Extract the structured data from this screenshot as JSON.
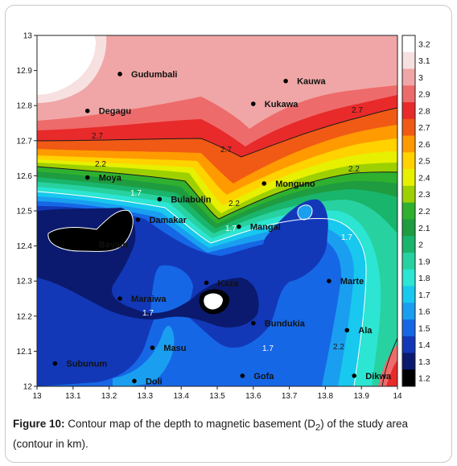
{
  "figure": {
    "x_ticks": [
      "13",
      "13.1",
      "13.2",
      "13.3",
      "13.4",
      "13.5",
      "13.6",
      "13.7",
      "13.8",
      "13.9",
      "14"
    ],
    "y_ticks": [
      "13",
      "12.9",
      "12.8",
      "12.7",
      "12.6",
      "12.5",
      "12.4",
      "12.3",
      "12.2",
      "12.1",
      "12"
    ],
    "colorbar": {
      "labels": [
        "3.2",
        "3.1",
        "3",
        "2.9",
        "2.8",
        "2.7",
        "2.6",
        "2.5",
        "2.4",
        "2.3",
        "2.2",
        "2.1",
        "2",
        "1.9",
        "1.8",
        "1.7",
        "1.6",
        "1.5",
        "1.4",
        "1.3",
        "1.2"
      ],
      "colors": [
        "#ffffff",
        "#f7e0e0",
        "#f0a6a6",
        "#ee6b6b",
        "#e82a2a",
        "#f05a14",
        "#ff9a00",
        "#ffd200",
        "#e6f000",
        "#9ed000",
        "#2fb12f",
        "#1e9c3f",
        "#19b56c",
        "#28d1a0",
        "#2ce5d2",
        "#18c8ee",
        "#1a9ff0",
        "#1667e6",
        "#1238b8",
        "#0b1a6e",
        "#000000"
      ]
    },
    "contour_labels": [
      "2.7",
      "2.7",
      "2.7",
      "2.2",
      "2.2",
      "2.2",
      "2.2",
      "1.7",
      "1.7",
      "1.7",
      "1.7",
      "1.7"
    ],
    "towns": [
      {
        "name": "Gudumbali",
        "lon": 13.23,
        "lat": 12.89
      },
      {
        "name": "Kauwa",
        "lon": 13.69,
        "lat": 12.87
      },
      {
        "name": "Degagu",
        "lon": 13.14,
        "lat": 12.785
      },
      {
        "name": "Kukawa",
        "lon": 13.6,
        "lat": 12.805
      },
      {
        "name": "Moya",
        "lon": 13.14,
        "lat": 12.595
      },
      {
        "name": "Monguno",
        "lon": 13.63,
        "lat": 12.578
      },
      {
        "name": "Bulabulin",
        "lon": 13.34,
        "lat": 12.533
      },
      {
        "name": "Damakar",
        "lon": 13.28,
        "lat": 12.475
      },
      {
        "name": "Mangal",
        "lon": 13.56,
        "lat": 12.455
      },
      {
        "name": "Bayam",
        "lon": 13.14,
        "lat": 12.405
      },
      {
        "name": "Marte",
        "lon": 13.81,
        "lat": 12.3
      },
      {
        "name": "Kaza",
        "lon": 13.47,
        "lat": 12.295
      },
      {
        "name": "Maraiwa",
        "lon": 13.23,
        "lat": 12.25
      },
      {
        "name": "Bundukia",
        "lon": 13.6,
        "lat": 12.18
      },
      {
        "name": "Ala",
        "lon": 13.86,
        "lat": 12.16
      },
      {
        "name": "Masu",
        "lon": 13.32,
        "lat": 12.11
      },
      {
        "name": "Subunum",
        "lon": 13.05,
        "lat": 12.065
      },
      {
        "name": "Gofa",
        "lon": 13.57,
        "lat": 12.03
      },
      {
        "name": "Dikwa",
        "lon": 13.88,
        "lat": 12.03
      },
      {
        "name": "Doli",
        "lon": 13.27,
        "lat": 12.015
      }
    ]
  },
  "caption": {
    "label": "Figure 10:",
    "text_before_sub": " Contour map of the depth to magnetic basement (D",
    "subscript": "2",
    "text_after_sub": ") of the study area (contour in km)."
  }
}
